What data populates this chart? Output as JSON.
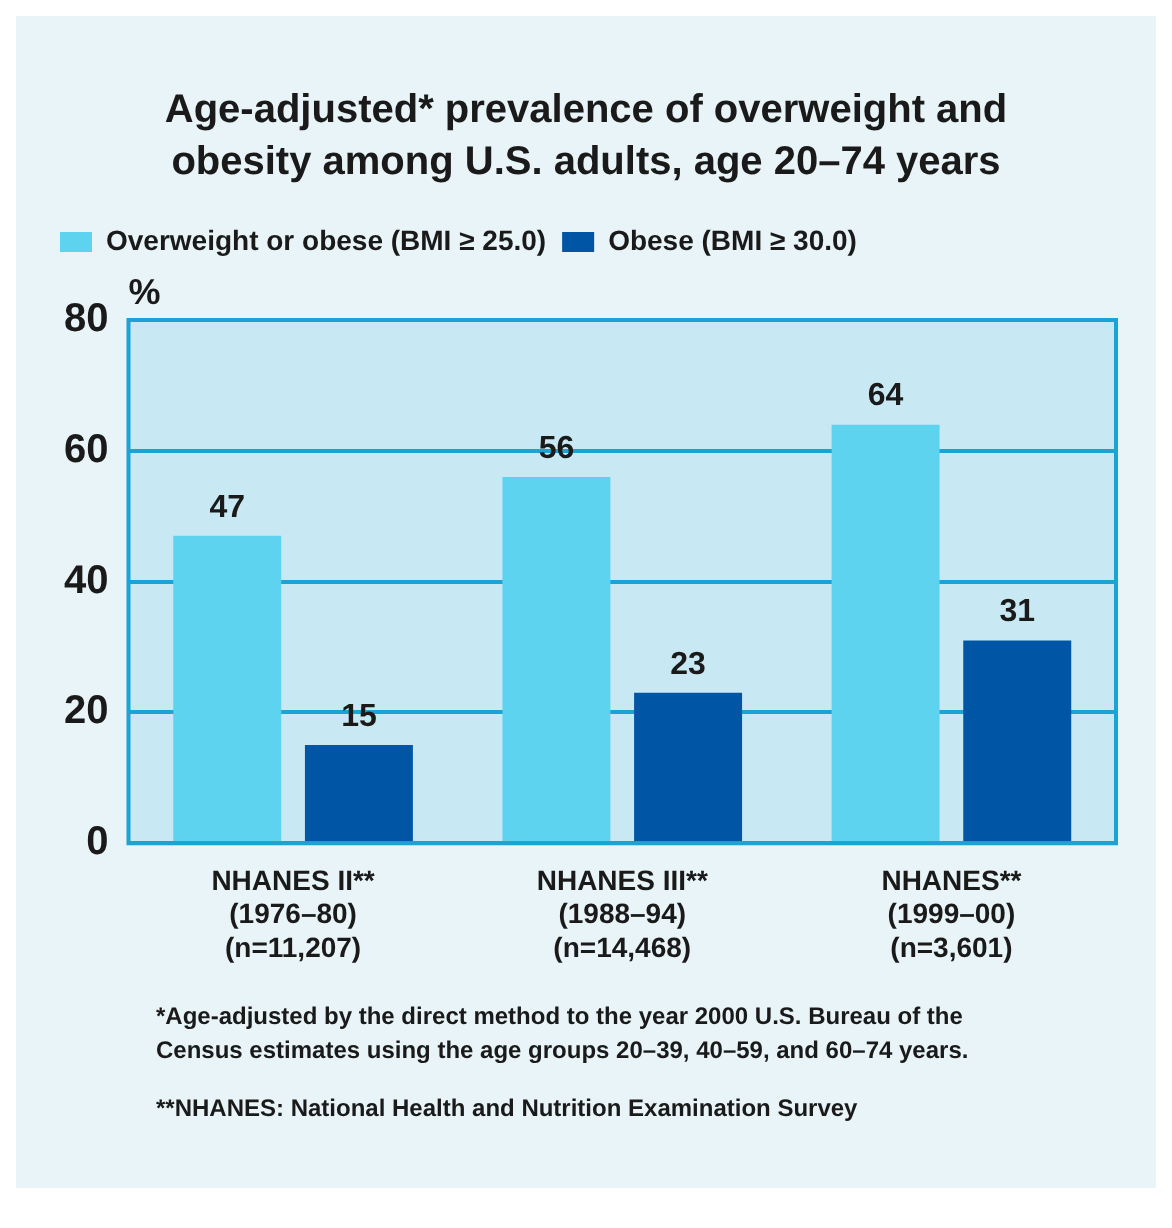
{
  "chart_data": {
    "type": "bar",
    "title": "Age-adjusted* prevalence of overweight and obesity among U.S. adults, age 20–74 years",
    "ylabel": "%",
    "categories": [
      "NHANES II**\n(1976–80)\n(n=11,207)",
      "NHANES III**\n(1988–94)\n(n=14,468)",
      "NHANES**\n(1999–00)\n(n=3,601)"
    ],
    "series": [
      {
        "name": "Overweight or obese (BMI ≥ 25.0)",
        "color": "#5dd3f0",
        "values": [
          47,
          56,
          64
        ]
      },
      {
        "name": "Obese (BMI ≥ 30.0)",
        "color": "#0055a5",
        "values": [
          15,
          23,
          31
        ]
      }
    ],
    "ylim": [
      0,
      80
    ],
    "yticks": [
      0,
      20,
      40,
      60,
      80
    ],
    "grid": "y",
    "legend": "top left",
    "data_labels": true,
    "annotations": [
      "*Age-adjusted by the direct method to the year 2000 U.S. Bureau of the Census estimates using the age groups 20–39, 40–59, and 60–74 years.",
      "**NHANES: National Health and Nutrition Examination Survey"
    ]
  }
}
